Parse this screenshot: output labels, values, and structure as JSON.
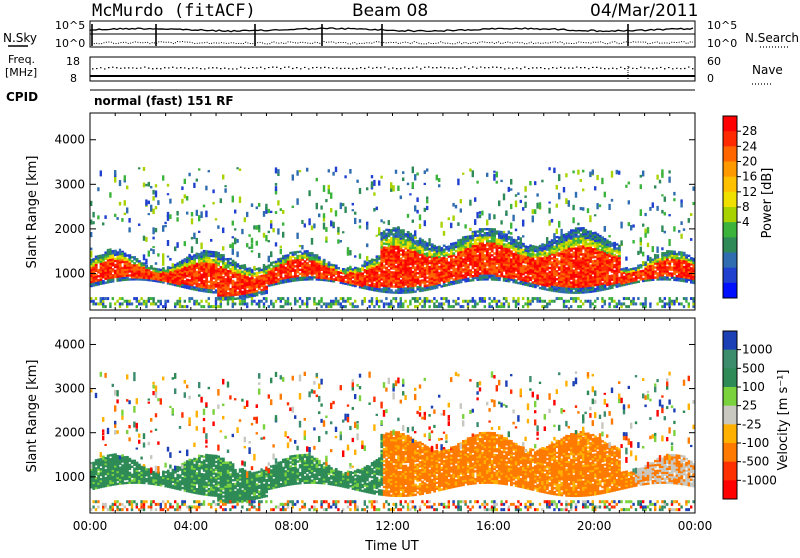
{
  "header": {
    "station": "McMurdo (fitACF)",
    "beam": "Beam 08",
    "date": "04/Mar/2011"
  },
  "status_panels": {
    "nsky_label": "N.Sky",
    "nsearch_label": "N.Search",
    "nsky_ticks": [
      "10^5",
      "10^0"
    ],
    "nsearch_ticks": [
      "10^5",
      "10^0"
    ],
    "freq_label_1": "Freq.",
    "freq_label_2": "[MHz]",
    "freq_ticks": [
      "18",
      "8"
    ],
    "nave_label": "Nave",
    "nave_ticks": [
      "60",
      "0"
    ],
    "cpid_label": "CPID",
    "cpid_text": "normal (fast) 151 RF"
  },
  "chart_data": [
    {
      "type": "heatmap",
      "name": "power",
      "xlabel": "Time UT",
      "ylabel": "Slant Range [km]",
      "xlim": [
        0,
        24
      ],
      "ylim": [
        180,
        4600
      ],
      "x_ticks": [
        "00:00",
        "04:00",
        "08:00",
        "12:00",
        "16:00",
        "20:00",
        "00:00"
      ],
      "y_ticks": [
        "1000",
        "2000",
        "3000",
        "4000"
      ],
      "colorbar": {
        "label": "Power [dB]",
        "ticks": [
          "28",
          "24",
          "20",
          "16",
          "12",
          "8",
          "4"
        ],
        "colors": [
          "#ff0000",
          "#ff2a00",
          "#ff6600",
          "#ff9900",
          "#ffc000",
          "#f0e000",
          "#a8d200",
          "#3cb43c",
          "#2e8b57",
          "#2f6db0",
          "#2040d0",
          "#0010ff"
        ]
      }
    },
    {
      "type": "heatmap",
      "name": "velocity",
      "xlabel": "Time UT",
      "ylabel": "Slant Range [km]",
      "xlim": [
        0,
        24
      ],
      "ylim": [
        180,
        4600
      ],
      "x_ticks": [
        "00:00",
        "04:00",
        "08:00",
        "12:00",
        "16:00",
        "20:00",
        "00:00"
      ],
      "y_ticks": [
        "1000",
        "2000",
        "3000",
        "4000"
      ],
      "colorbar": {
        "label": "Velocity [m s⁻¹]",
        "ticks": [
          "1000",
          "500",
          "100",
          "25",
          "-25",
          "-100",
          "-500",
          "-1000"
        ],
        "colors": [
          "#1b3fb5",
          "#3c8c6e",
          "#2e8b57",
          "#7ad23c",
          "#c8c8c0",
          "#ffb000",
          "#ff7a00",
          "#ff3000",
          "#ff0000"
        ]
      }
    }
  ],
  "time_axis_label": "Time UT"
}
